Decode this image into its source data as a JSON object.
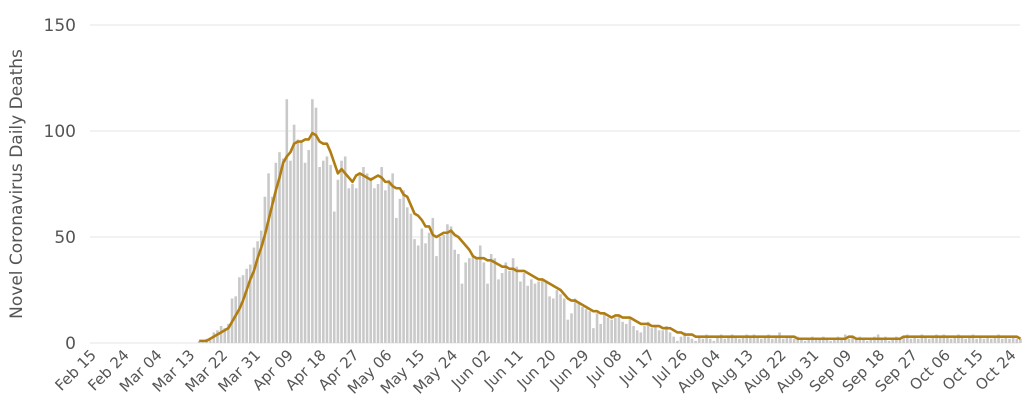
{
  "chart_data": {
    "type": "bar",
    "y_label": "Novel Coronavirus Daily Deaths",
    "categories": [
      "Feb 15",
      null,
      null,
      null,
      null,
      null,
      null,
      null,
      null,
      "Feb 24",
      null,
      null,
      null,
      null,
      null,
      null,
      null,
      null,
      "Mar 04",
      null,
      null,
      null,
      null,
      null,
      null,
      null,
      null,
      "Mar 13",
      null,
      null,
      null,
      null,
      null,
      null,
      null,
      null,
      "Mar 22",
      null,
      null,
      null,
      null,
      null,
      null,
      null,
      null,
      "Mar 31",
      null,
      null,
      null,
      null,
      null,
      null,
      null,
      null,
      "Apr 09",
      null,
      null,
      null,
      null,
      null,
      null,
      null,
      null,
      "Apr 18",
      null,
      null,
      null,
      null,
      null,
      null,
      null,
      null,
      "Apr 27",
      null,
      null,
      null,
      null,
      null,
      null,
      null,
      null,
      "May 06",
      null,
      null,
      null,
      null,
      null,
      null,
      null,
      null,
      "May 15",
      null,
      null,
      null,
      null,
      null,
      null,
      null,
      null,
      "May 24",
      null,
      null,
      null,
      null,
      null,
      null,
      null,
      null,
      "Jun 02",
      null,
      null,
      null,
      null,
      null,
      null,
      null,
      null,
      "Jun 11",
      null,
      null,
      null,
      null,
      null,
      null,
      null,
      null,
      "Jun 20",
      null,
      null,
      null,
      null,
      null,
      null,
      null,
      null,
      "Jun 29",
      null,
      null,
      null,
      null,
      null,
      null,
      null,
      null,
      "Jul 08",
      null,
      null,
      null,
      null,
      null,
      null,
      null,
      null,
      "Jul 17",
      null,
      null,
      null,
      null,
      null,
      null,
      null,
      null,
      "Jul 26",
      null,
      null,
      null,
      null,
      null,
      null,
      null,
      null,
      "Aug 04",
      null,
      null,
      null,
      null,
      null,
      null,
      null,
      null,
      "Aug 13",
      null,
      null,
      null,
      null,
      null,
      null,
      null,
      null,
      "Aug 22",
      null,
      null,
      null,
      null,
      null,
      null,
      null,
      null,
      "Aug 31",
      null,
      null,
      null,
      null,
      null,
      null,
      null,
      null,
      "Sep 09",
      null,
      null,
      null,
      null,
      null,
      null,
      null,
      null,
      "Sep 18",
      null,
      null,
      null,
      null,
      null,
      null,
      null,
      null,
      "Sep 27",
      null,
      null,
      null,
      null,
      null,
      null,
      null,
      null,
      "Oct 06",
      null,
      null,
      null,
      null,
      null,
      null,
      null,
      null,
      "Oct 15",
      null,
      null,
      null,
      null,
      null,
      null,
      null,
      null,
      "Oct 24",
      null
    ],
    "series": [
      {
        "type": "bar",
        "color": "#c9c9c9",
        "values": [
          0,
          0,
          0,
          0,
          0,
          0,
          0,
          0,
          0,
          0,
          0,
          0,
          0,
          0,
          0,
          0,
          0,
          0,
          0,
          0,
          0,
          0,
          0,
          0,
          0,
          0,
          0,
          0,
          1,
          1,
          2,
          2,
          5,
          6,
          8,
          7,
          9,
          21,
          22,
          31,
          32,
          35,
          37,
          45,
          48,
          53,
          69,
          80,
          69,
          85,
          90,
          87,
          115,
          86,
          103,
          96,
          95,
          85,
          91,
          115,
          111,
          83,
          86,
          88,
          84,
          62,
          77,
          86,
          88,
          73,
          75,
          73,
          80,
          83,
          80,
          78,
          73,
          75,
          83,
          72,
          77,
          80,
          59,
          68,
          72,
          64,
          61,
          49,
          46,
          54,
          47,
          52,
          59,
          41,
          50,
          51,
          56,
          55,
          44,
          42,
          28,
          38,
          40,
          41,
          40,
          46,
          38,
          28,
          42,
          40,
          30,
          33,
          38,
          34,
          40,
          36,
          29,
          33,
          27,
          30,
          28,
          29,
          30,
          29,
          22,
          21,
          25,
          23,
          21,
          11,
          14,
          21,
          19,
          17,
          16,
          15,
          7,
          14,
          9,
          14,
          12,
          11,
          12,
          13,
          10,
          9,
          12,
          8,
          6,
          5,
          8,
          10,
          7,
          8,
          6,
          6,
          8,
          5,
          3,
          1,
          3,
          5,
          3,
          2,
          1,
          3,
          2,
          4,
          2,
          1,
          3,
          4,
          2,
          3,
          4,
          3,
          2,
          3,
          4,
          3,
          4,
          3,
          2,
          3,
          4,
          2,
          3,
          5,
          2,
          3,
          3,
          2,
          3,
          2,
          1,
          2,
          3,
          2,
          2,
          3,
          2,
          1,
          2,
          3,
          2,
          4,
          2,
          3,
          2,
          3,
          2,
          1,
          2,
          3,
          4,
          2,
          3,
          1,
          2,
          3,
          2,
          3,
          4,
          2,
          3,
          2,
          4,
          3,
          2,
          3,
          4,
          3,
          4,
          3,
          2,
          3,
          4,
          3,
          2,
          3,
          4,
          2,
          3,
          2,
          3,
          2,
          3,
          4,
          2,
          3,
          2,
          3,
          2,
          2
        ]
      },
      {
        "type": "line",
        "color": "#b07d12",
        "values": [
          null,
          null,
          null,
          null,
          null,
          null,
          null,
          null,
          null,
          null,
          null,
          null,
          null,
          null,
          null,
          null,
          null,
          null,
          null,
          null,
          null,
          null,
          null,
          null,
          null,
          null,
          null,
          null,
          1,
          1,
          1,
          2,
          3,
          4,
          5,
          6,
          7,
          10,
          13,
          16,
          20,
          25,
          30,
          34,
          40,
          45,
          51,
          58,
          65,
          72,
          78,
          85,
          88,
          90,
          94,
          95,
          95,
          96,
          96,
          99,
          98,
          95,
          94,
          94,
          90,
          85,
          80,
          82,
          80,
          78,
          76,
          79,
          80,
          79,
          78,
          77,
          78,
          79,
          78,
          76,
          76,
          74,
          73,
          73,
          70,
          69,
          65,
          61,
          60,
          58,
          55,
          55,
          51,
          50,
          51,
          52,
          52,
          53,
          51,
          50,
          48,
          46,
          44,
          41,
          40,
          40,
          40,
          39,
          39,
          38,
          37,
          36,
          36,
          35,
          35,
          34,
          34,
          34,
          33,
          32,
          31,
          30,
          30,
          29,
          28,
          27,
          26,
          25,
          23,
          21,
          20,
          20,
          19,
          18,
          17,
          16,
          15,
          15,
          14,
          14,
          13,
          12,
          13,
          13,
          12,
          12,
          12,
          11,
          10,
          9,
          9,
          9,
          8,
          8,
          8,
          7,
          7,
          7,
          6,
          5,
          5,
          4,
          4,
          4,
          3,
          3,
          3,
          3,
          3,
          3,
          3,
          3,
          3,
          3,
          3,
          3,
          3,
          3,
          3,
          3,
          3,
          3,
          3,
          3,
          3,
          3,
          3,
          3,
          3,
          3,
          3,
          3,
          2,
          2,
          2,
          2,
          2,
          2,
          2,
          2,
          2,
          2,
          2,
          2,
          2,
          2,
          3,
          3,
          2,
          2,
          2,
          2,
          2,
          2,
          2,
          2,
          2,
          2,
          2,
          2,
          2,
          3,
          3,
          3,
          3,
          3,
          3,
          3,
          3,
          3,
          3,
          3,
          3,
          3,
          3,
          3,
          3,
          3,
          3,
          3,
          3,
          3,
          3,
          3,
          3,
          3,
          3,
          3,
          3,
          3,
          3,
          3,
          3,
          2
        ]
      }
    ],
    "ylim": [
      0,
      150
    ],
    "yticks": [
      0,
      50,
      100,
      150
    ],
    "grid": true
  }
}
